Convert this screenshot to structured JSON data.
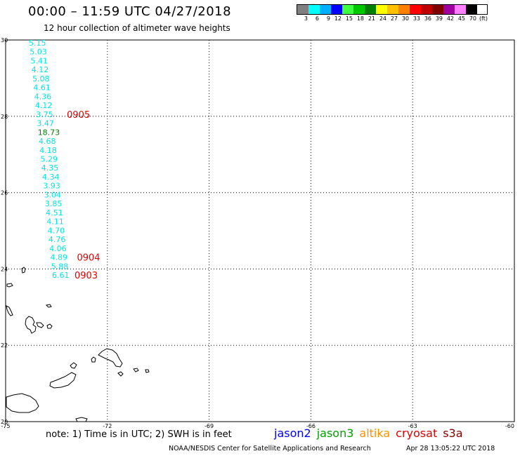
{
  "header": {
    "title": "00:00 – 11:59 UTC 04/27/2018",
    "subtitle": "12 hour collection of altimeter wave heights"
  },
  "legend": {
    "colors": [
      "#808080",
      "#00ffff",
      "#00b0ff",
      "#0000ff",
      "#40ff40",
      "#00c800",
      "#008000",
      "#ffff00",
      "#ffc000",
      "#ff8000",
      "#ff0000",
      "#c00000",
      "#800000",
      "#a000a0",
      "#ff80ff",
      "#000000"
    ],
    "labels": [
      "3",
      "6",
      "9",
      "12",
      "15",
      "18",
      "21",
      "24",
      "27",
      "30",
      "33",
      "36",
      "39",
      "42",
      "45",
      "70",
      "(ft)"
    ]
  },
  "axes": {
    "lat_ticks": [
      "30",
      "28",
      "26",
      "24",
      "22",
      "20"
    ],
    "lon_ticks": [
      "-75",
      "-72",
      "-69",
      "-66",
      "-63",
      "-60"
    ]
  },
  "wave_heights": [
    {
      "value": "5.15",
      "color": "#00e5e5"
    },
    {
      "value": "5.03",
      "color": "#00e5e5"
    },
    {
      "value": "5.41",
      "color": "#00e5e5"
    },
    {
      "value": "4.12",
      "color": "#00e5e5"
    },
    {
      "value": "5.08",
      "color": "#00e5e5"
    },
    {
      "value": "4.61",
      "color": "#00e5e5"
    },
    {
      "value": "4.36",
      "color": "#00e5e5"
    },
    {
      "value": "4.12",
      "color": "#00e5e5"
    },
    {
      "value": "3.75",
      "color": "#00e5e5"
    },
    {
      "value": "3.47",
      "color": "#00e5e5"
    },
    {
      "value": "18.73",
      "color": "#008000"
    },
    {
      "value": "4.68",
      "color": "#00e5e5"
    },
    {
      "value": "4.18",
      "color": "#00e5e5"
    },
    {
      "value": "5.29",
      "color": "#00e5e5"
    },
    {
      "value": "4.35",
      "color": "#00e5e5"
    },
    {
      "value": "4.34",
      "color": "#00e5e5"
    },
    {
      "value": "3.93",
      "color": "#00e5e5"
    },
    {
      "value": "3.04",
      "color": "#00e5e5"
    },
    {
      "value": "3.85",
      "color": "#00e5e5"
    },
    {
      "value": "4.51",
      "color": "#00e5e5"
    },
    {
      "value": "4.11",
      "color": "#00e5e5"
    },
    {
      "value": "4.70",
      "color": "#00e5e5"
    },
    {
      "value": "4.76",
      "color": "#00e5e5"
    },
    {
      "value": "4.06",
      "color": "#00e5e5"
    },
    {
      "value": "4.89",
      "color": "#00e5e5"
    },
    {
      "value": "5.88",
      "color": "#00e5e5"
    },
    {
      "value": "6.61",
      "color": "#00e5e5"
    }
  ],
  "time_labels": [
    {
      "text": "0905",
      "color": "#e00000"
    },
    {
      "text": "0904",
      "color": "#e00000"
    },
    {
      "text": "0903",
      "color": "#e00000"
    }
  ],
  "footer": {
    "note": "note: 1) Time is in UTC; 2) SWH is in feet",
    "satellites": [
      {
        "name": "jason2",
        "color": "#0000ff"
      },
      {
        "name": "jason3",
        "color": "#00a000"
      },
      {
        "name": "altika",
        "color": "#ff9000"
      },
      {
        "name": "cryosat",
        "color": "#e00000"
      },
      {
        "name": "s3a",
        "color": "#800000"
      }
    ],
    "credit": "NOAA/NESDIS Center for Satellite Applications and Research",
    "timestamp": "Apr 28 13:05:22 UTC 2018"
  }
}
